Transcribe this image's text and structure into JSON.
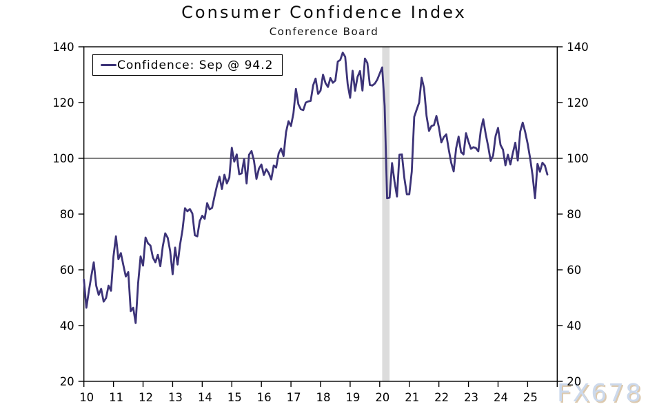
{
  "header": {
    "title": "Consumer Confidence Index",
    "subtitle": "Conference Board"
  },
  "legend": {
    "label": "Confidence: Sep @ 94.2"
  },
  "watermark": "FX678",
  "chart_data": {
    "type": "line",
    "title": "Consumer Confidence Index",
    "subtitle": "Conference Board",
    "xlabel": "",
    "ylabel": "",
    "xlim": [
      2010,
      2026
    ],
    "ylim": [
      20,
      140
    ],
    "y_ticks": [
      20,
      40,
      60,
      80,
      100,
      120,
      140
    ],
    "x_tick_labels": [
      "10",
      "11",
      "12",
      "13",
      "14",
      "15",
      "16",
      "17",
      "18",
      "19",
      "20",
      "21",
      "22",
      "23",
      "24",
      "25"
    ],
    "x_tick_start_year": 2010,
    "x_axis_end_tick_year": 2026,
    "grid": false,
    "legend_position": "top-left",
    "reference_line_y": 100,
    "recession_band_x": [
      2020.083,
      2020.333
    ],
    "line_color": "#3C3378",
    "band_color": "#DCDCDC",
    "axis_color": "#000000",
    "series": [
      {
        "name": "Confidence: Sep @ 94.2",
        "frequency": "monthly",
        "start_year": 2010,
        "start_month": 1,
        "last_point_label": "Sep 2025 @ 94.2",
        "values": [
          56.5,
          46.4,
          52.3,
          57.7,
          62.7,
          54.3,
          51.0,
          53.2,
          48.6,
          49.9,
          54.3,
          52.5,
          64.8,
          72.0,
          63.8,
          66.0,
          61.7,
          57.6,
          59.2,
          45.2,
          46.4,
          40.9,
          55.2,
          64.8,
          61.5,
          71.6,
          69.5,
          68.7,
          64.4,
          62.7,
          65.4,
          61.3,
          68.4,
          73.1,
          71.5,
          66.7,
          58.4,
          68.0,
          61.9,
          69.0,
          74.3,
          82.1,
          81.0,
          81.8,
          80.2,
          72.4,
          72.0,
          77.5,
          79.4,
          78.3,
          83.9,
          81.7,
          82.2,
          86.4,
          90.3,
          93.4,
          89.0,
          94.1,
          91.0,
          93.1,
          103.8,
          98.8,
          101.4,
          94.3,
          94.6,
          99.8,
          91.0,
          101.3,
          102.6,
          99.1,
          92.6,
          96.3,
          97.8,
          94.0,
          96.1,
          94.7,
          92.4,
          97.4,
          96.7,
          101.8,
          103.5,
          100.8,
          109.4,
          113.3,
          111.6,
          116.1,
          124.9,
          119.4,
          117.6,
          117.3,
          120.0,
          120.4,
          120.6,
          126.2,
          128.6,
          123.1,
          124.3,
          130.0,
          127.0,
          125.6,
          128.8,
          127.1,
          127.9,
          134.7,
          135.3,
          137.9,
          136.4,
          126.6,
          121.7,
          131.4,
          124.2,
          129.2,
          131.3,
          124.3,
          135.8,
          134.2,
          126.3,
          126.1,
          126.8,
          128.2,
          130.4,
          132.6,
          118.8,
          85.7,
          85.9,
          98.3,
          91.7,
          86.3,
          101.3,
          101.4,
          92.9,
          87.1,
          87.1,
          95.2,
          114.9,
          117.5,
          120.0,
          128.9,
          125.1,
          115.2,
          109.8,
          111.6,
          111.9,
          115.2,
          111.1,
          105.7,
          107.6,
          108.6,
          103.2,
          98.4,
          95.3,
          103.6,
          107.8,
          102.2,
          101.4,
          109.0,
          106.0,
          103.4,
          104.0,
          103.7,
          102.5,
          110.1,
          114.0,
          108.7,
          104.3,
          99.1,
          101.0,
          108.0,
          110.9,
          104.8,
          103.1,
          97.5,
          101.3,
          97.8,
          101.9,
          105.6,
          99.2,
          109.6,
          112.8,
          109.5,
          105.3,
          100.1,
          93.9,
          85.7,
          98.0,
          95.2,
          98.4,
          97.4,
          94.2
        ]
      }
    ]
  }
}
